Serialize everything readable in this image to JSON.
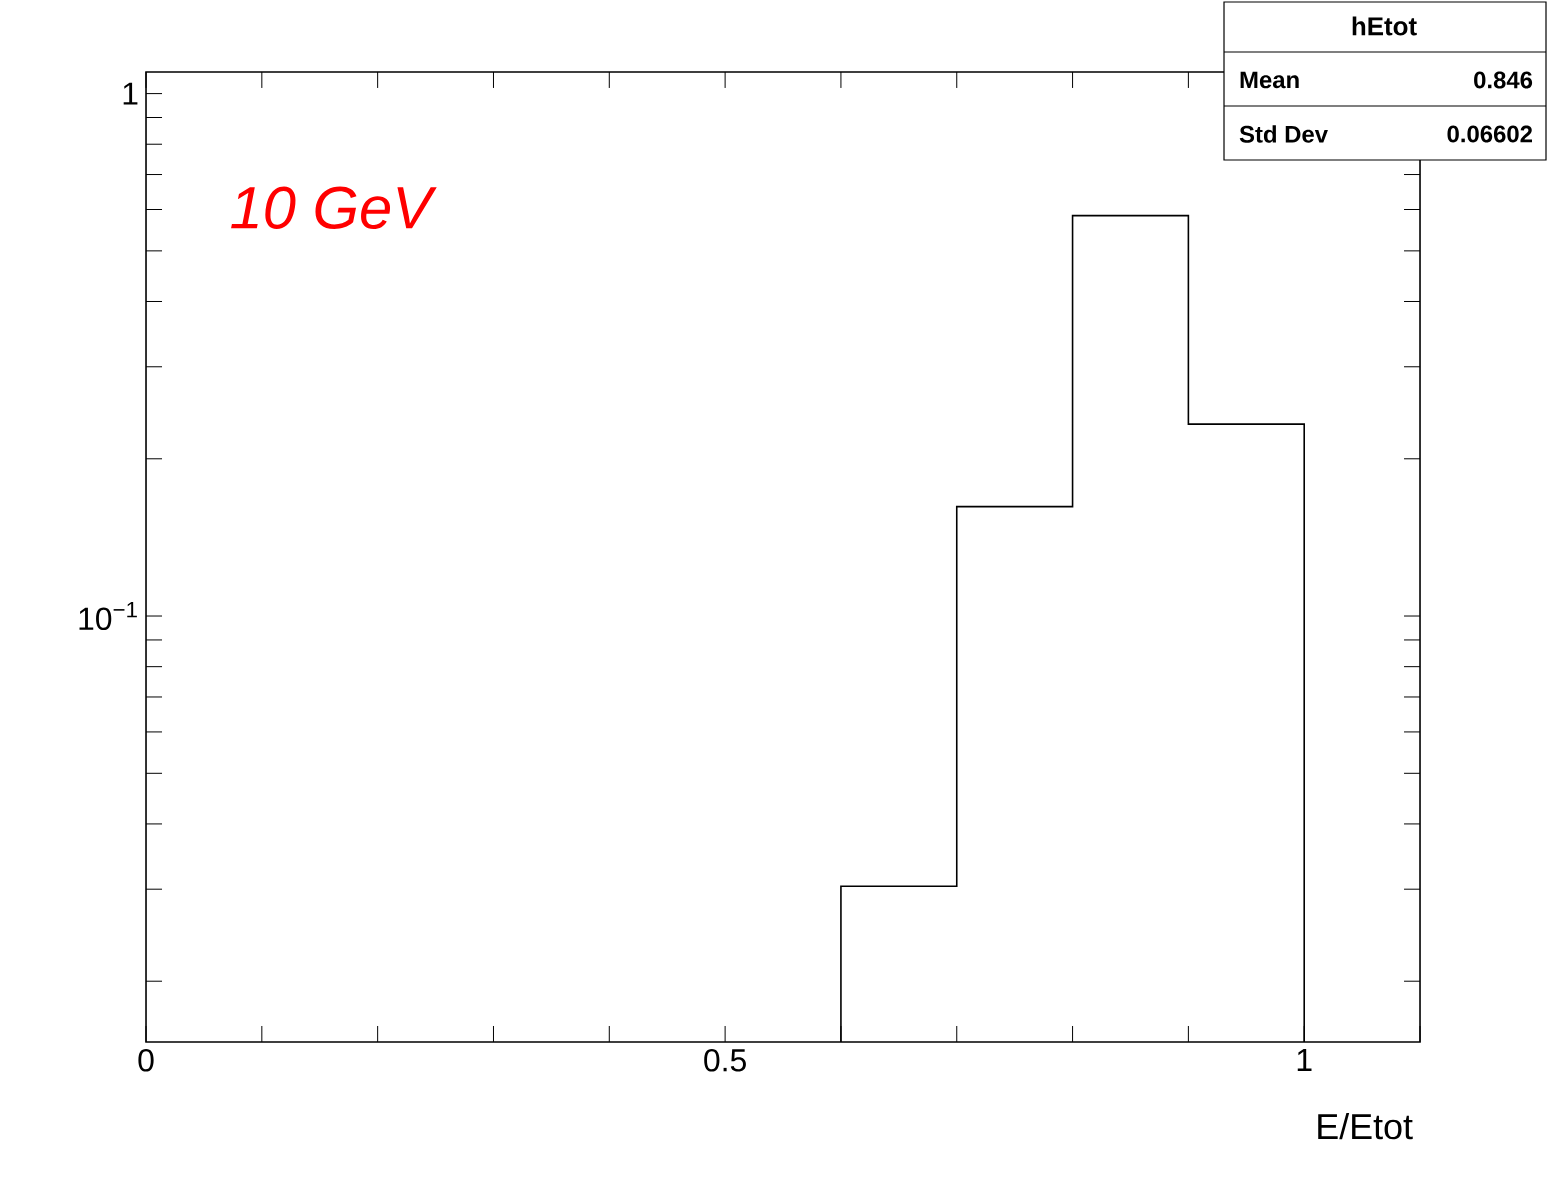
{
  "chart_data": {
    "type": "histogram",
    "xlabel": "E/Etot",
    "bins": [
      0.6,
      0.7,
      0.8,
      0.9,
      1.0
    ],
    "values": [
      0.0304,
      0.162,
      0.584,
      0.233
    ],
    "color": "#000000",
    "log": "y",
    "xlim": [
      0,
      1.1
    ],
    "ylim": [
      0.0153,
      1.1
    ],
    "xticks": [
      0,
      {
        "value": 0.1,
        "label": null
      },
      {
        "value": 0.2,
        "label": null
      },
      {
        "value": 0.3,
        "label": null
      },
      {
        "value": 0.4,
        "label": null
      },
      0.5,
      {
        "value": 0.6,
        "label": null
      },
      {
        "value": 0.7,
        "label": null
      },
      {
        "value": 0.8,
        "label": null
      },
      {
        "value": 0.9,
        "label": null
      },
      1,
      {
        "value": 1.1,
        "label": null
      }
    ],
    "yticks": [
      {
        "value": 0.02,
        "label": null
      },
      {
        "value": 0.03,
        "label": null
      },
      {
        "value": 0.04,
        "label": null
      },
      {
        "value": 0.05,
        "label": null
      },
      {
        "value": 0.06,
        "label": null
      },
      {
        "value": 0.07,
        "label": null
      },
      {
        "value": 0.08,
        "label": null
      },
      {
        "value": 0.09,
        "label": null
      },
      {
        "value": 0.1,
        "label": "10$^{−1}$"
      },
      {
        "value": 0.2,
        "label": null
      },
      {
        "value": 0.3,
        "label": null
      },
      {
        "value": 0.4,
        "label": null
      },
      {
        "value": 0.5,
        "label": null
      },
      {
        "value": 0.6,
        "label": null
      },
      {
        "value": 0.7,
        "label": null
      },
      {
        "value": 0.8,
        "label": null
      },
      {
        "value": 0.9,
        "label": null
      },
      1
    ],
    "annotations": [
      "10 GeV",
      "hEtot",
      "Mean",
      "0.846",
      "Std Dev",
      "0.06602"
    ]
  }
}
